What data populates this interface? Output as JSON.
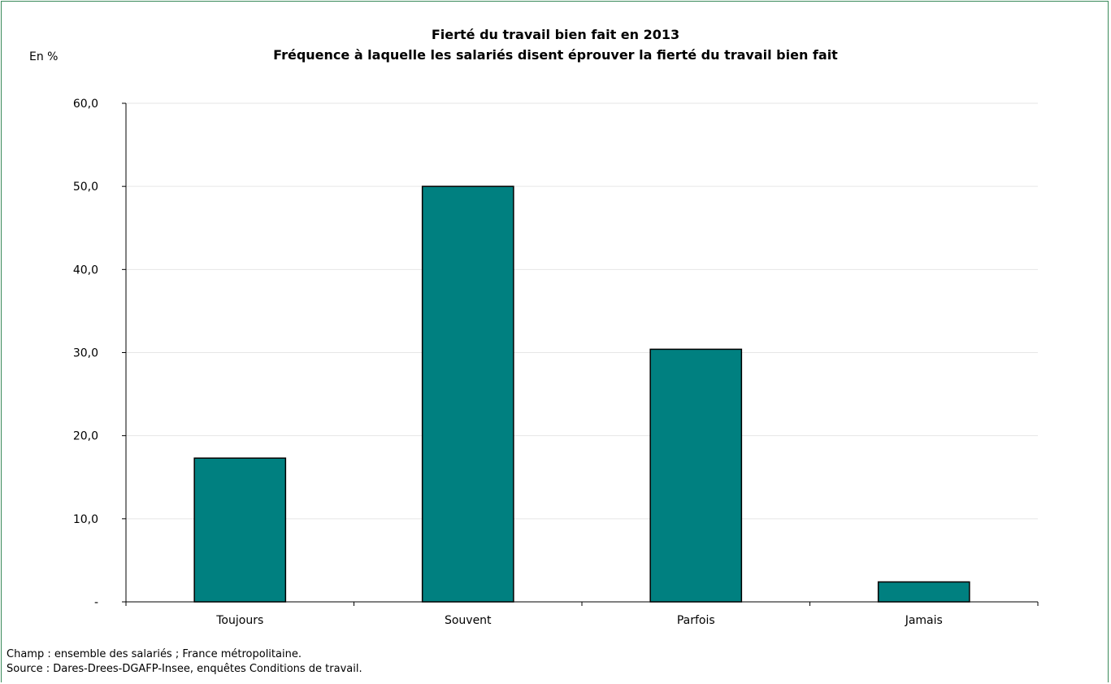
{
  "chart_data": {
    "type": "bar",
    "title": "Fierté du travail bien fait en 2013",
    "subtitle": "Fréquence à laquelle les salariés disent éprouver la fierté du travail bien fait",
    "ylabel": "En %",
    "xlabel": "",
    "categories": [
      "Toujours",
      "Souvent",
      "Parfois",
      "Jamais"
    ],
    "values": [
      17.3,
      50.0,
      30.4,
      2.4
    ],
    "ylim": [
      0,
      60
    ],
    "yticks": [
      {
        "value": 0,
        "label": "-"
      },
      {
        "value": 10,
        "label": "10,0"
      },
      {
        "value": 20,
        "label": "20,0"
      },
      {
        "value": 30,
        "label": "30,0"
      },
      {
        "value": 40,
        "label": "40,0"
      },
      {
        "value": 50,
        "label": "50,0"
      },
      {
        "value": 60,
        "label": "60,0"
      }
    ],
    "grid": true,
    "bar_color": "#008080"
  },
  "notes": {
    "champ": "Champ : ensemble des salariés ; France métropolitaine.",
    "source": "Source : Dares-Drees-DGAFP-Insee, enquêtes Conditions de travail."
  },
  "colors": {
    "frame": "#3a8a5a",
    "gridline": "#e6e6e6",
    "axis": "#000000"
  }
}
